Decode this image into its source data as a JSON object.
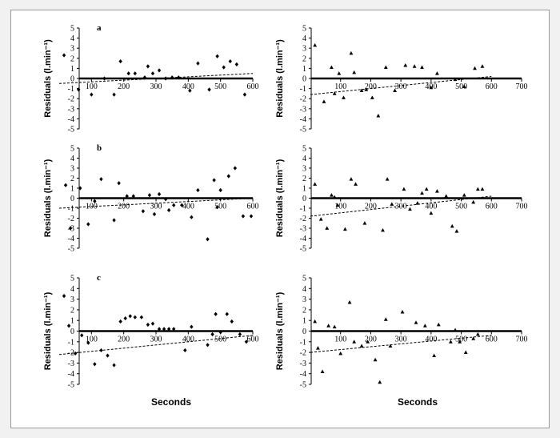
{
  "figure": {
    "ylabel": "Residuals (l.min⁻¹)",
    "xlabel": "Seconds",
    "colors": {
      "page": "#f1f1f1",
      "frame": "#9a9a9a",
      "ink": "#000000"
    }
  },
  "chart_data": [
    {
      "type": "scatter",
      "panel": "a",
      "marker": "diamond",
      "xlim": [
        0,
        600
      ],
      "ylim": [
        -5,
        5
      ],
      "xticks": [
        100,
        200,
        300,
        400,
        500,
        600
      ],
      "yticks": [
        5,
        4,
        3,
        2,
        1,
        0,
        -1,
        -2,
        -3,
        -4,
        -5
      ],
      "points": [
        [
          15,
          2.3
        ],
        [
          60,
          -1.1
        ],
        [
          100,
          -1.6
        ],
        [
          140,
          0.0
        ],
        [
          170,
          -1.6
        ],
        [
          190,
          1.7
        ],
        [
          215,
          0.5
        ],
        [
          235,
          0.5
        ],
        [
          265,
          0.1
        ],
        [
          275,
          1.2
        ],
        [
          290,
          0.5
        ],
        [
          310,
          0.8
        ],
        [
          330,
          0.0
        ],
        [
          350,
          0.1
        ],
        [
          370,
          0.1
        ],
        [
          405,
          -1.2
        ],
        [
          430,
          1.5
        ],
        [
          465,
          -1.1
        ],
        [
          490,
          2.2
        ],
        [
          510,
          1.1
        ],
        [
          530,
          1.7
        ],
        [
          550,
          1.4
        ],
        [
          575,
          -1.6
        ]
      ],
      "trend": [
        [
          0,
          -0.5
        ],
        [
          600,
          0.5
        ]
      ]
    },
    {
      "type": "scatter",
      "panel": "",
      "marker": "triangle",
      "xlim": [
        0,
        700
      ],
      "ylim": [
        -5,
        5
      ],
      "xticks": [
        100,
        200,
        300,
        400,
        500,
        600,
        700
      ],
      "yticks": [
        5,
        4,
        3,
        2,
        1,
        0,
        -1,
        -2,
        -3,
        -4,
        -5
      ],
      "points": [
        [
          15,
          3.3
        ],
        [
          45,
          -2.3
        ],
        [
          70,
          1.1
        ],
        [
          80,
          -1.5
        ],
        [
          95,
          0.5
        ],
        [
          110,
          -1.9
        ],
        [
          135,
          2.5
        ],
        [
          145,
          0.6
        ],
        [
          170,
          -1.2
        ],
        [
          185,
          -1.1
        ],
        [
          205,
          -1.9
        ],
        [
          225,
          -3.7
        ],
        [
          250,
          1.1
        ],
        [
          280,
          -1.2
        ],
        [
          315,
          1.3
        ],
        [
          345,
          1.2
        ],
        [
          370,
          1.1
        ],
        [
          400,
          -0.9
        ],
        [
          420,
          0.5
        ],
        [
          480,
          -0.1
        ],
        [
          510,
          -0.8
        ],
        [
          545,
          1.0
        ],
        [
          570,
          1.2
        ]
      ],
      "trend": [
        [
          0,
          -1.6
        ],
        [
          600,
          0.2
        ]
      ]
    },
    {
      "type": "scatter",
      "panel": "b",
      "marker": "diamond",
      "xlim": [
        0,
        600
      ],
      "ylim": [
        -5,
        5
      ],
      "xticks": [
        100,
        200,
        300,
        400,
        500,
        600
      ],
      "yticks": [
        5,
        4,
        3,
        2,
        1,
        0,
        -1,
        -2,
        -3,
        -4,
        -5
      ],
      "points": [
        [
          20,
          1.3
        ],
        [
          35,
          -3.0
        ],
        [
          65,
          1.0
        ],
        [
          90,
          -2.6
        ],
        [
          110,
          -0.3
        ],
        [
          130,
          1.9
        ],
        [
          170,
          -2.2
        ],
        [
          185,
          1.5
        ],
        [
          210,
          0.2
        ],
        [
          230,
          0.2
        ],
        [
          260,
          -1.3
        ],
        [
          280,
          0.3
        ],
        [
          295,
          -1.6
        ],
        [
          310,
          0.4
        ],
        [
          330,
          -0.1
        ],
        [
          340,
          -1.2
        ],
        [
          355,
          -0.7
        ],
        [
          380,
          -0.7
        ],
        [
          410,
          -1.9
        ],
        [
          430,
          0.8
        ],
        [
          460,
          -4.1
        ],
        [
          480,
          1.8
        ],
        [
          490,
          -0.9
        ],
        [
          500,
          0.8
        ],
        [
          525,
          2.2
        ],
        [
          545,
          3.0
        ],
        [
          570,
          -1.8
        ],
        [
          595,
          -1.8
        ]
      ],
      "trend": [
        [
          0,
          -1.0
        ],
        [
          600,
          0.0
        ]
      ]
    },
    {
      "type": "scatter",
      "panel": "",
      "marker": "triangle",
      "xlim": [
        0,
        700
      ],
      "ylim": [
        -5,
        5
      ],
      "xticks": [
        100,
        200,
        300,
        400,
        500,
        600,
        700
      ],
      "yticks": [
        5,
        4,
        3,
        2,
        1,
        0,
        -1,
        -2,
        -3,
        -4,
        -5
      ],
      "points": [
        [
          15,
          1.4
        ],
        [
          35,
          -2.1
        ],
        [
          55,
          -3.0
        ],
        [
          70,
          0.3
        ],
        [
          80,
          0.1
        ],
        [
          90,
          -0.7
        ],
        [
          115,
          -3.1
        ],
        [
          135,
          1.9
        ],
        [
          150,
          1.4
        ],
        [
          180,
          -2.5
        ],
        [
          240,
          -3.2
        ],
        [
          255,
          1.9
        ],
        [
          270,
          -0.6
        ],
        [
          310,
          0.9
        ],
        [
          330,
          -1.1
        ],
        [
          355,
          -0.5
        ],
        [
          370,
          0.5
        ],
        [
          385,
          0.9
        ],
        [
          400,
          -1.5
        ],
        [
          420,
          0.7
        ],
        [
          450,
          0.2
        ],
        [
          470,
          -2.8
        ],
        [
          485,
          -3.3
        ],
        [
          510,
          0.3
        ],
        [
          540,
          -0.4
        ],
        [
          555,
          0.9
        ],
        [
          570,
          0.9
        ]
      ],
      "trend": [
        [
          0,
          -1.8
        ],
        [
          600,
          0.2
        ]
      ]
    },
    {
      "type": "scatter",
      "panel": "c",
      "marker": "diamond",
      "xlim": [
        0,
        600
      ],
      "ylim": [
        -5,
        5
      ],
      "xticks": [
        100,
        200,
        300,
        400,
        500,
        600
      ],
      "yticks": [
        5,
        4,
        3,
        2,
        1,
        0,
        -1,
        -2,
        -3,
        -4,
        -5
      ],
      "points": [
        [
          15,
          3.3
        ],
        [
          30,
          0.5
        ],
        [
          50,
          -2.1
        ],
        [
          70,
          -0.4
        ],
        [
          90,
          -1.1
        ],
        [
          110,
          -3.1
        ],
        [
          130,
          -1.8
        ],
        [
          150,
          -2.3
        ],
        [
          170,
          -3.2
        ],
        [
          190,
          0.9
        ],
        [
          205,
          1.2
        ],
        [
          220,
          1.4
        ],
        [
          235,
          1.3
        ],
        [
          255,
          1.3
        ],
        [
          275,
          0.6
        ],
        [
          290,
          0.7
        ],
        [
          310,
          0.2
        ],
        [
          325,
          0.2
        ],
        [
          340,
          0.2
        ],
        [
          355,
          0.2
        ],
        [
          390,
          -1.8
        ],
        [
          410,
          0.4
        ],
        [
          460,
          -1.3
        ],
        [
          475,
          -0.3
        ],
        [
          485,
          1.6
        ],
        [
          500,
          -0.1
        ],
        [
          520,
          1.6
        ],
        [
          535,
          0.9
        ],
        [
          560,
          -0.3
        ],
        [
          580,
          -1.0
        ]
      ],
      "trend": [
        [
          0,
          -2.2
        ],
        [
          600,
          -0.4
        ]
      ]
    },
    {
      "type": "scatter",
      "panel": "",
      "marker": "triangle",
      "xlim": [
        0,
        700
      ],
      "ylim": [
        -5,
        5
      ],
      "xticks": [
        100,
        200,
        300,
        400,
        500,
        600,
        700
      ],
      "yticks": [
        5,
        4,
        3,
        2,
        1,
        0,
        -1,
        -2,
        -3,
        -4,
        -5
      ],
      "points": [
        [
          15,
          0.9
        ],
        [
          25,
          -1.6
        ],
        [
          40,
          -3.8
        ],
        [
          60,
          0.5
        ],
        [
          80,
          0.4
        ],
        [
          100,
          -2.1
        ],
        [
          130,
          2.7
        ],
        [
          145,
          -1.0
        ],
        [
          170,
          -1.4
        ],
        [
          190,
          -1.0
        ],
        [
          215,
          -2.7
        ],
        [
          230,
          -4.8
        ],
        [
          250,
          1.1
        ],
        [
          265,
          -1.4
        ],
        [
          305,
          1.8
        ],
        [
          350,
          0.8
        ],
        [
          380,
          0.5
        ],
        [
          410,
          -2.3
        ],
        [
          425,
          0.6
        ],
        [
          465,
          -1.0
        ],
        [
          480,
          0.1
        ],
        [
          495,
          -1.0
        ],
        [
          515,
          -2.0
        ],
        [
          540,
          -0.7
        ],
        [
          555,
          -0.3
        ]
      ],
      "trend": [
        [
          0,
          -2.0
        ],
        [
          600,
          -0.4
        ]
      ]
    }
  ]
}
